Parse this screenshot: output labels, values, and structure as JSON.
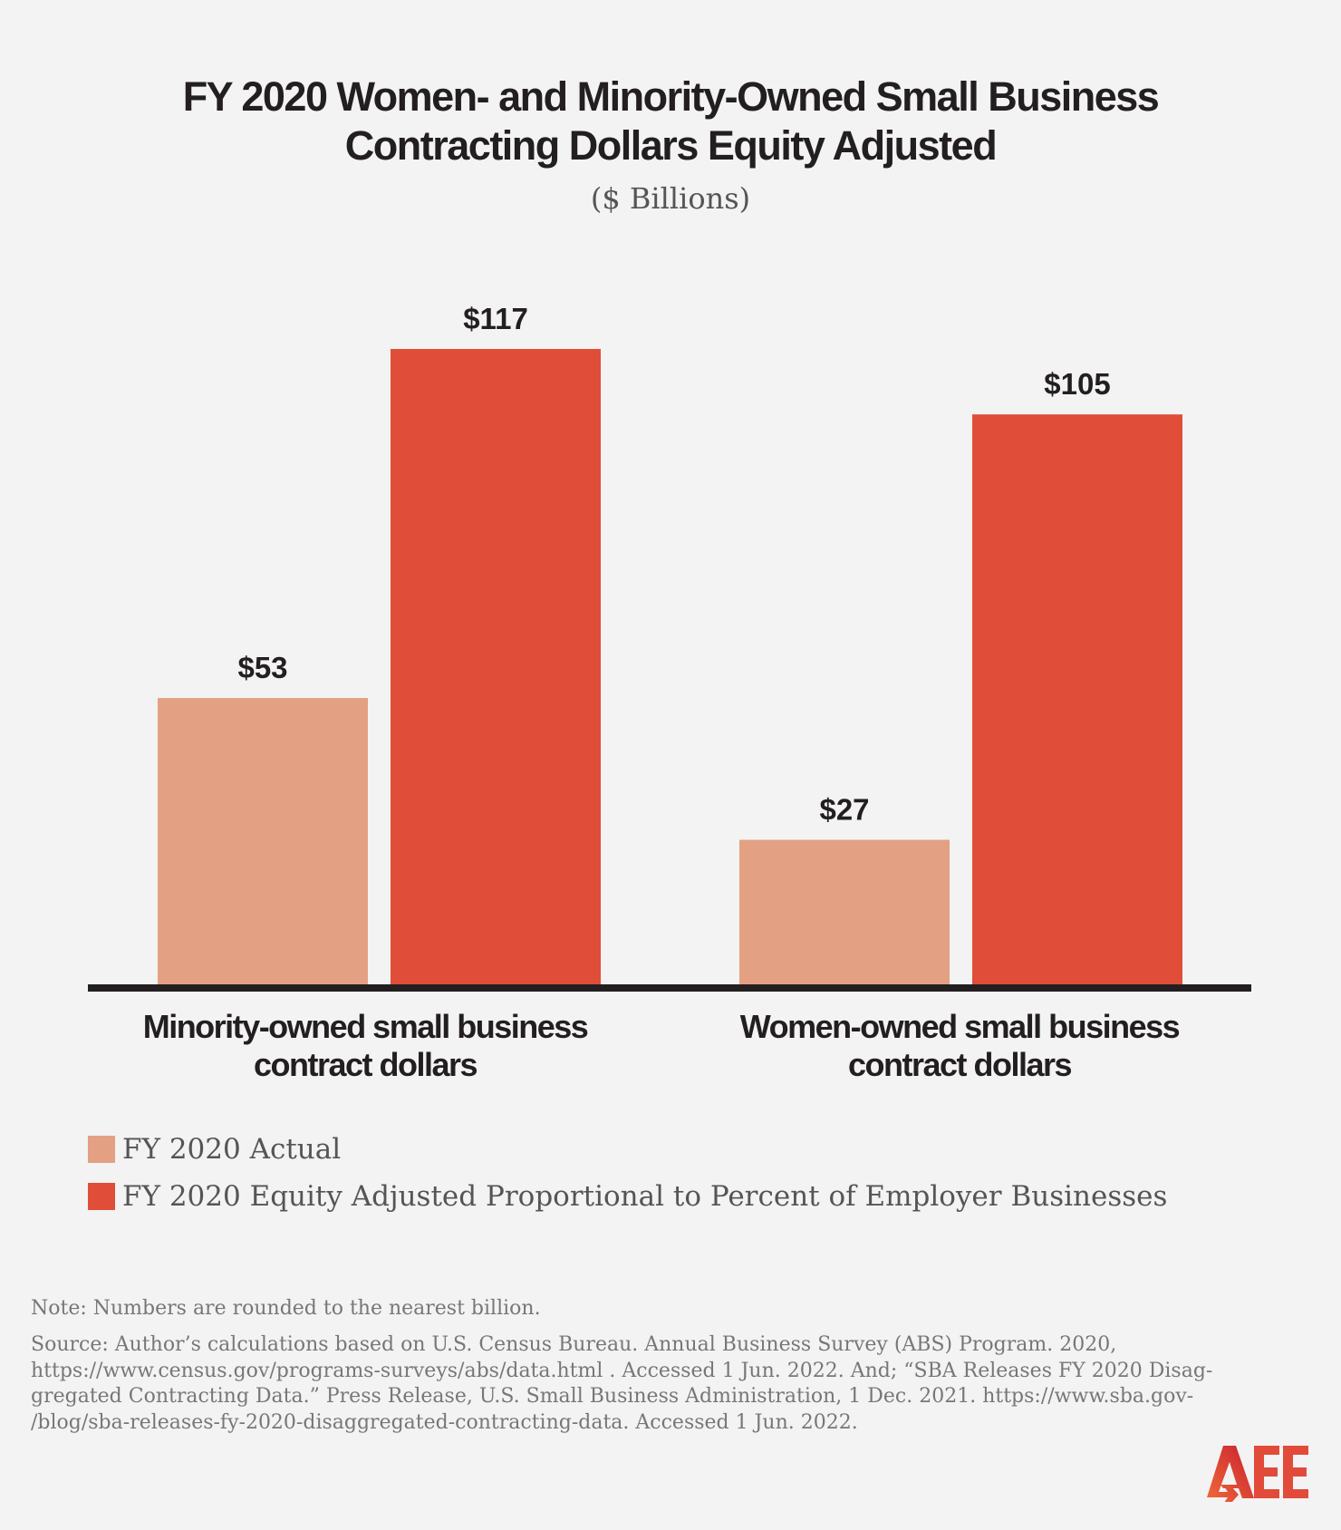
{
  "chart_data": {
    "type": "bar",
    "title_lines": [
      "FY 2020 Women- and Minority-Owned Small Business",
      "Contracting Dollars Equity Adjusted"
    ],
    "subtitle": "($ Billions)",
    "categories": [
      [
        "Minority-owned small business",
        "contract dollars"
      ],
      [
        "Women-owned small business",
        "contract dollars"
      ]
    ],
    "series": [
      {
        "name": "FY 2020 Actual",
        "values": [
          53,
          27
        ],
        "labels": [
          "$53",
          "$27"
        ],
        "color": "#e3a083"
      },
      {
        "name": "FY 2020 Equity Adjusted Proportional to Percent of Employer Businesses",
        "values": [
          117,
          105
        ],
        "labels": [
          "$117",
          "$105"
        ],
        "color": "#e04e39"
      }
    ],
    "ylim": [
      0,
      117
    ],
    "grid": false,
    "legend_placement": "bottom-left"
  },
  "footer": {
    "note": "Note: Numbers are rounded to the nearest billion.",
    "source_lines": [
      "Source: Author’s calculations based on U.S. Census Bureau. Annual Business Survey (ABS) Program. 2020,",
      "https://www.census.gov/programs-surveys/abs/data.html . Accessed 1 Jun. 2022. And; “SBA Releases FY 2020 Disag-",
      "gregated Contracting Data.” Press Release, U.S. Small Business Administration, 1 Dec. 2021. https://www.sba.gov-",
      "/blog/sba-releases-fy-2020-disaggregated-contracting-data. Accessed 1 Jun. 2022."
    ],
    "logo_text": "AEE"
  }
}
